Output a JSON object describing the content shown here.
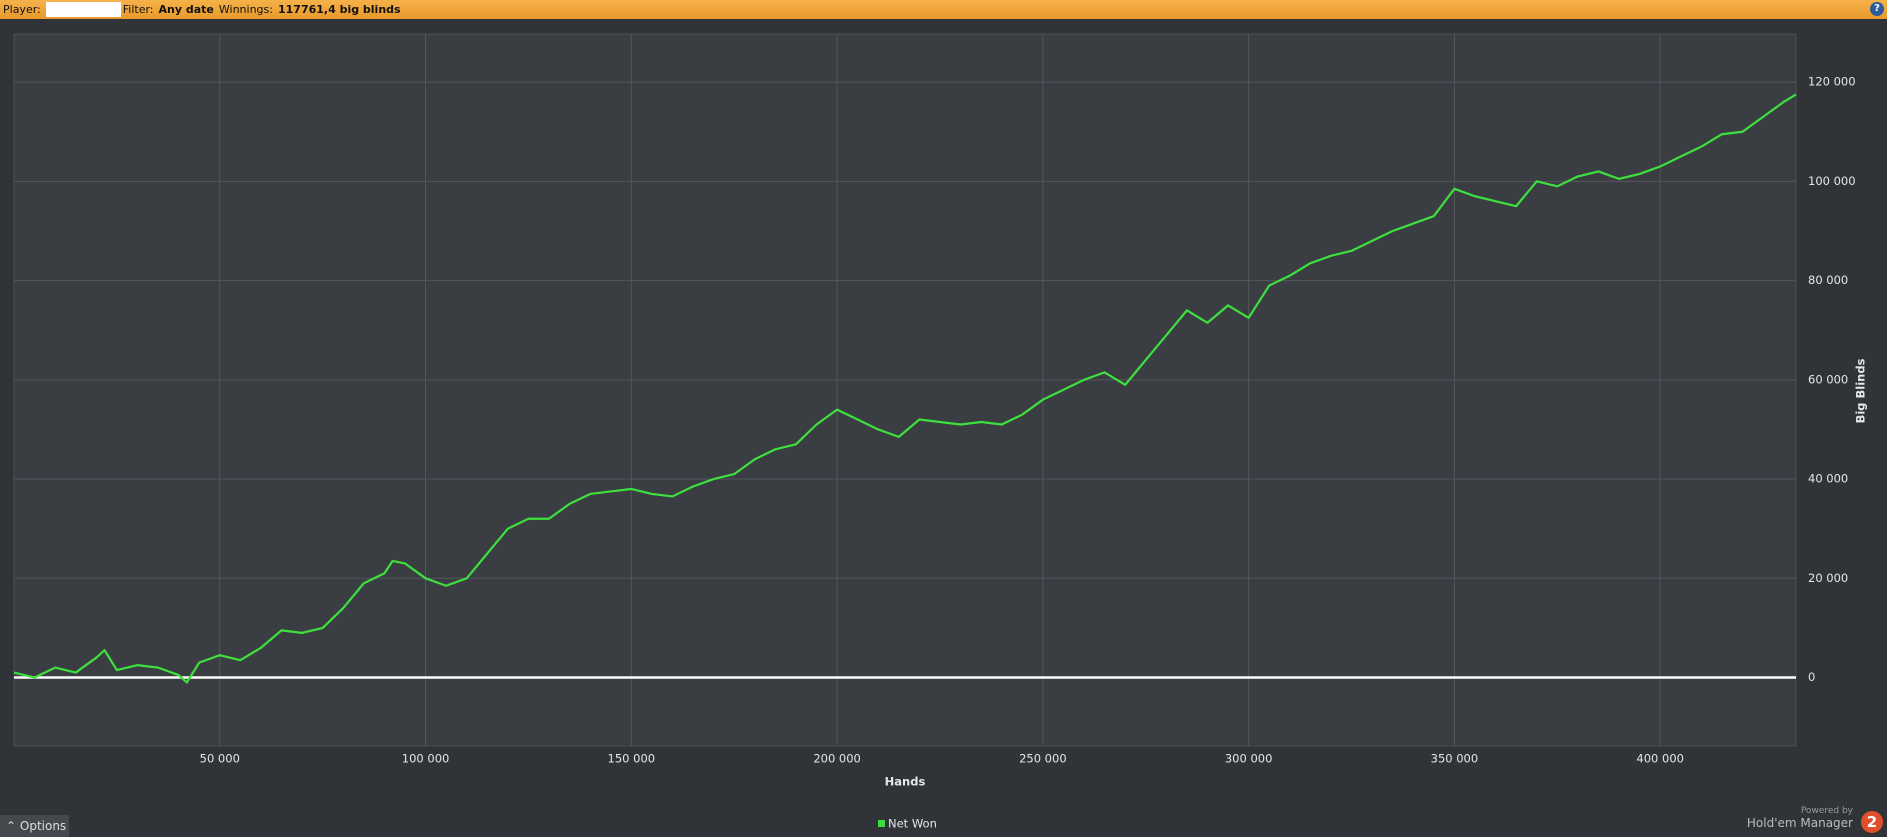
{
  "toolbar": {
    "player_label": "Player:",
    "filter_label": "Filter:",
    "filter_value": "Any date",
    "winnings_label": "Winnings:",
    "winnings_value": "117761,4 big blinds",
    "help": "?"
  },
  "chart_data": {
    "type": "line",
    "x_label": "Hands",
    "y_label": "Big Blinds",
    "x": [
      0,
      5000,
      10000,
      15000,
      20000,
      22000,
      25000,
      30000,
      35000,
      40000,
      42000,
      45000,
      50000,
      55000,
      60000,
      65000,
      70000,
      75000,
      80000,
      85000,
      90000,
      92000,
      95000,
      100000,
      105000,
      110000,
      115000,
      120000,
      125000,
      130000,
      135000,
      140000,
      145000,
      150000,
      155000,
      160000,
      165000,
      170000,
      175000,
      180000,
      185000,
      190000,
      195000,
      200000,
      205000,
      210000,
      215000,
      220000,
      225000,
      230000,
      235000,
      240000,
      245000,
      250000,
      255000,
      260000,
      265000,
      270000,
      275000,
      280000,
      285000,
      290000,
      295000,
      300000,
      305000,
      310000,
      315000,
      320000,
      325000,
      330000,
      335000,
      340000,
      345000,
      350000,
      355000,
      360000,
      365000,
      370000,
      375000,
      380000,
      385000,
      390000,
      395000,
      400000,
      405000,
      410000,
      415000,
      420000,
      425000,
      430000,
      433000
    ],
    "series": [
      {
        "name": "Net Won",
        "color": "#3ee03e",
        "values": [
          1000,
          0,
          2000,
          1000,
          4000,
          5500,
          1500,
          2500,
          2000,
          500,
          -1000,
          3000,
          4500,
          3500,
          6000,
          9500,
          9000,
          10000,
          14000,
          19000,
          21000,
          23500,
          23000,
          20000,
          18500,
          20000,
          25000,
          30000,
          32000,
          32000,
          35000,
          37000,
          37500,
          38000,
          37000,
          36500,
          38500,
          40000,
          41000,
          44000,
          46000,
          47000,
          51000,
          54000,
          52000,
          50000,
          48500,
          52000,
          51500,
          51000,
          51500,
          51000,
          53000,
          56000,
          58000,
          60000,
          61500,
          59000,
          64000,
          69000,
          74000,
          71500,
          75000,
          72500,
          79000,
          81000,
          83500,
          85000,
          86000,
          88000,
          90000,
          91500,
          93000,
          98500,
          97000,
          96000,
          95000,
          100000,
          99000,
          101000,
          102000,
          100500,
          101500,
          103000,
          105000,
          107000,
          109500,
          110000,
          113000,
          116000,
          117500
        ]
      }
    ],
    "xlim": [
      0,
      433000
    ],
    "ylim": [
      -13800,
      129700
    ],
    "xticks": [
      {
        "value": 50000,
        "label": "50 000"
      },
      {
        "value": 100000,
        "label": "100 000"
      },
      {
        "value": 150000,
        "label": "150 000"
      },
      {
        "value": 200000,
        "label": "200 000"
      },
      {
        "value": 250000,
        "label": "250 000"
      },
      {
        "value": 300000,
        "label": "300 000"
      },
      {
        "value": 350000,
        "label": "350 000"
      },
      {
        "value": 400000,
        "label": "400 000"
      }
    ],
    "yticks": [
      0,
      {
        "value": 20000,
        "label": "20 000"
      },
      {
        "value": 40000,
        "label": "40 000"
      },
      {
        "value": 60000,
        "label": "60 000"
      },
      {
        "value": 80000,
        "label": "80 000"
      },
      {
        "value": 100000,
        "label": "100 000"
      },
      {
        "value": 120000,
        "label": "120 000"
      }
    ],
    "grid": true
  },
  "footer": {
    "options": "Options",
    "powered_by": "Powered by",
    "product": "Hold'em Manager",
    "logo": "2"
  }
}
